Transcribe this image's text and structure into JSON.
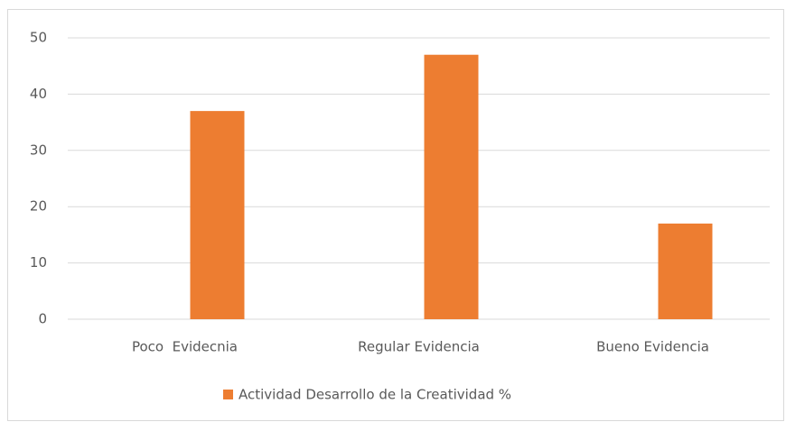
{
  "chart_data": {
    "type": "bar",
    "categories": [
      "Poco  Evidecnia",
      "Regular Evidencia",
      "Bueno Evidencia"
    ],
    "series": [
      {
        "name": "Actividad Desarrollo de la Creatividad %",
        "color": "#ed7d31",
        "values": [
          37,
          47,
          17
        ]
      }
    ],
    "ylim": [
      0,
      50
    ],
    "yticks": [
      0,
      10,
      20,
      30,
      40,
      50
    ],
    "grid": true,
    "legend": "bottom"
  }
}
